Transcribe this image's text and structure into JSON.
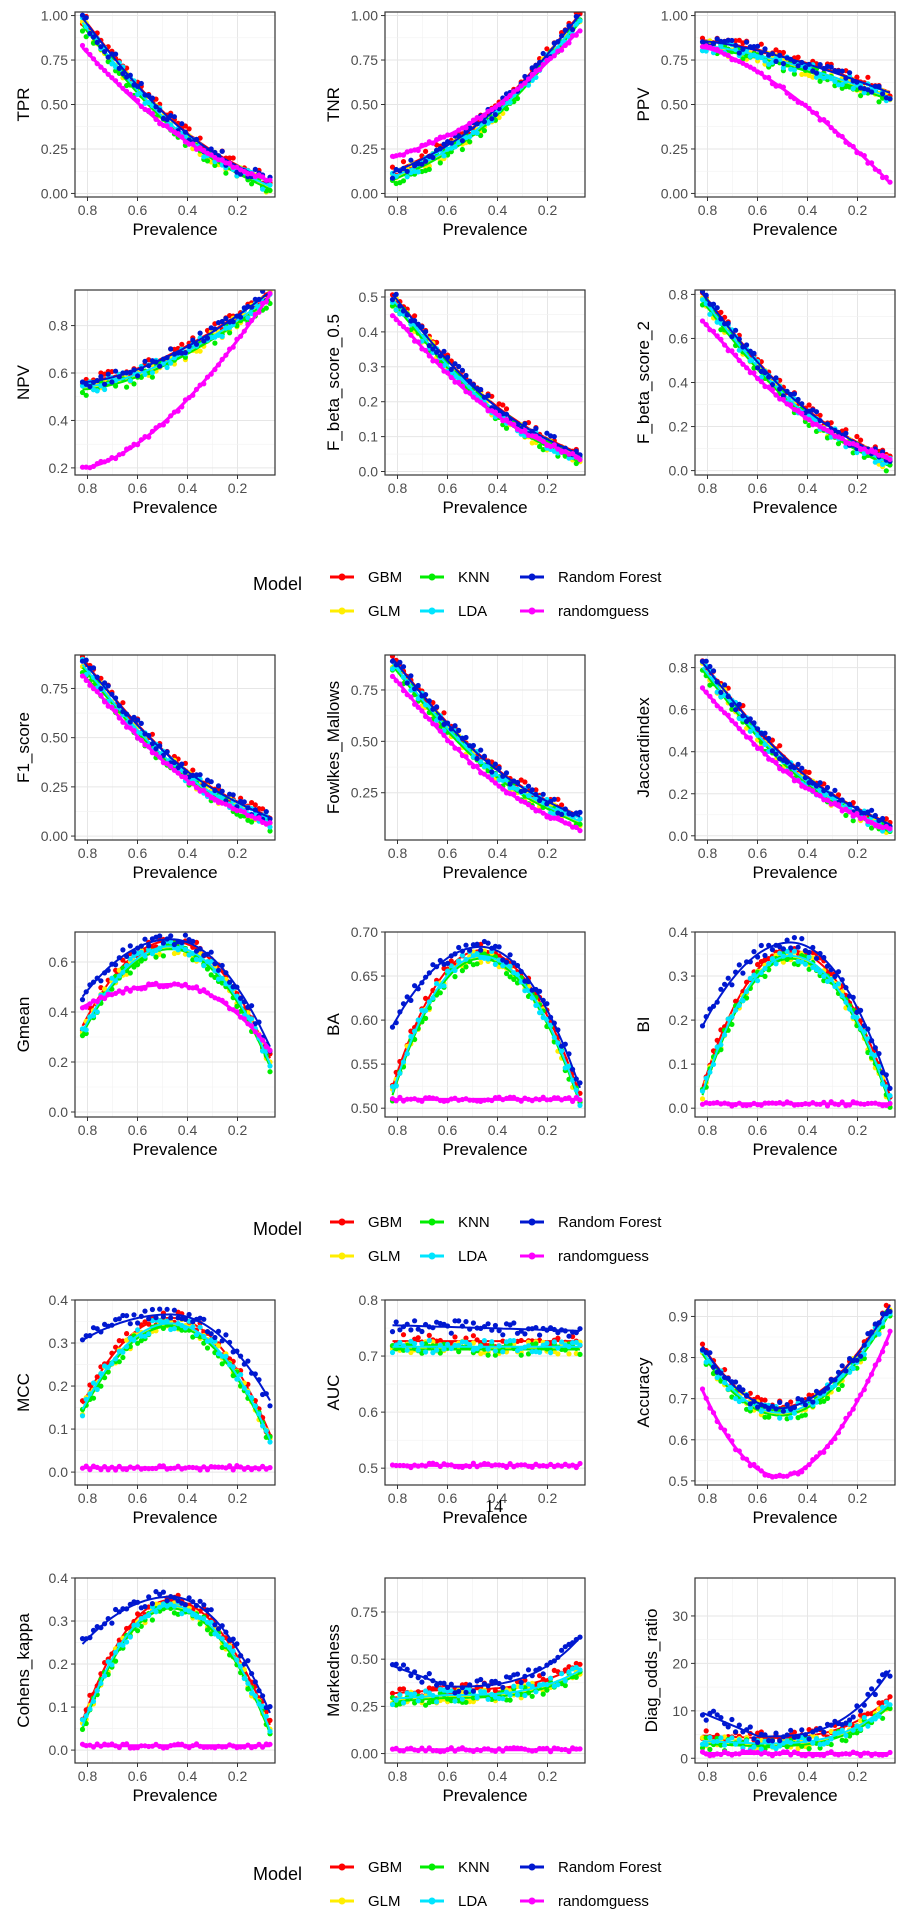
{
  "page_number": "14",
  "colors": {
    "GBM": "#FF0000",
    "GLM": "#FFEE00",
    "KNN": "#00EE00",
    "LDA": "#00E5FF",
    "Random Forest": "#0018D0",
    "randomguess": "#FF00FF"
  },
  "legends": [
    {
      "title": "Model",
      "row1": [
        "GBM",
        "KNN",
        "Random Forest"
      ],
      "row2": [
        "GLM",
        "LDA",
        "randomguess"
      ]
    },
    {
      "title": "Model",
      "row1": [
        "GBM",
        "KNN",
        "Random Forest"
      ],
      "row2": [
        "GLM",
        "LDA",
        "randomguess"
      ]
    },
    {
      "title": "Model",
      "row1": [
        "GBM",
        "KNN",
        "Random Forest"
      ],
      "row2": [
        "GLM",
        "LDA",
        "randomguess"
      ]
    }
  ],
  "chart_data": [
    {
      "type": "scatter",
      "title": "",
      "xlabel": "Prevalence",
      "ylabel": "TPR",
      "xlim": [
        0.85,
        0.05
      ],
      "ylim": [
        -0.02,
        1.02
      ],
      "xticks": [
        "0.8",
        "0.6",
        "0.4",
        "0.2"
      ],
      "yticks": [
        "0.00",
        "0.25",
        "0.50",
        "0.75",
        "1.00"
      ],
      "grid": true,
      "shape": "decline",
      "models": {
        "main": [
          0.97,
          0.05
        ],
        "rg": [
          0.82,
          0.07
        ]
      }
    },
    {
      "type": "scatter",
      "title": "",
      "xlabel": "Prevalence",
      "ylabel": "TNR",
      "xlim": [
        0.85,
        0.05
      ],
      "ylim": [
        -0.02,
        1.02
      ],
      "xticks": [
        "0.8",
        "0.6",
        "0.4",
        "0.2"
      ],
      "yticks": [
        "0.00",
        "0.25",
        "0.50",
        "0.75",
        "1.00"
      ],
      "grid": true,
      "shape": "rise",
      "models": {
        "main": [
          0.1,
          0.99
        ],
        "rg": [
          0.2,
          0.92
        ]
      }
    },
    {
      "type": "scatter",
      "title": "",
      "xlabel": "Prevalence",
      "ylabel": "PPV",
      "xlim": [
        0.85,
        0.05
      ],
      "ylim": [
        -0.02,
        1.02
      ],
      "xticks": [
        "0.8",
        "0.6",
        "0.4",
        "0.2"
      ],
      "yticks": [
        "0.00",
        "0.25",
        "0.50",
        "0.75",
        "1.00"
      ],
      "grid": true,
      "shape": "ppv",
      "models": {
        "main": [
          0.84,
          0.55
        ],
        "rg": [
          0.82,
          0.06
        ]
      }
    },
    {
      "type": "scatter",
      "title": "",
      "xlabel": "Prevalence",
      "ylabel": "NPV",
      "xlim": [
        0.85,
        0.05
      ],
      "ylim": [
        0.17,
        0.95
      ],
      "xticks": [
        "0.8",
        "0.6",
        "0.4",
        "0.2"
      ],
      "yticks": [
        "0.2",
        "0.4",
        "0.6",
        "0.8"
      ],
      "grid": true,
      "shape": "npv",
      "models": {
        "main": [
          0.55,
          0.93
        ],
        "rg": [
          0.2,
          0.93
        ]
      }
    },
    {
      "type": "scatter",
      "title": "",
      "xlabel": "Prevalence",
      "ylabel": "F_beta_score_0.5",
      "xlim": [
        0.85,
        0.05
      ],
      "ylim": [
        -0.01,
        0.52
      ],
      "xticks": [
        "0.8",
        "0.6",
        "0.4",
        "0.2"
      ],
      "yticks": [
        "0.0",
        "0.1",
        "0.2",
        "0.3",
        "0.4",
        "0.5"
      ],
      "grid": true,
      "shape": "decline",
      "models": {
        "main": [
          0.5,
          0.04
        ],
        "rg": [
          0.45,
          0.04
        ]
      }
    },
    {
      "type": "scatter",
      "title": "",
      "xlabel": "Prevalence",
      "ylabel": "F_beta_score_2",
      "xlim": [
        0.85,
        0.05
      ],
      "ylim": [
        -0.02,
        0.82
      ],
      "xticks": [
        "0.8",
        "0.6",
        "0.4",
        "0.2"
      ],
      "yticks": [
        "0.0",
        "0.2",
        "0.4",
        "0.6",
        "0.8"
      ],
      "grid": true,
      "shape": "decline",
      "models": {
        "main": [
          0.79,
          0.04
        ],
        "rg": [
          0.68,
          0.05
        ]
      }
    },
    {
      "type": "scatter",
      "title": "",
      "xlabel": "Prevalence",
      "ylabel": "F1_score",
      "xlim": [
        0.85,
        0.05
      ],
      "ylim": [
        -0.02,
        0.92
      ],
      "xticks": [
        "0.8",
        "0.6",
        "0.4",
        "0.2"
      ],
      "yticks": [
        "0.00",
        "0.25",
        "0.50",
        "0.75"
      ],
      "grid": true,
      "shape": "decline",
      "models": {
        "main": [
          0.88,
          0.08
        ],
        "rg": [
          0.82,
          0.06
        ]
      }
    },
    {
      "type": "scatter",
      "title": "",
      "xlabel": "Prevalence",
      "ylabel": "Fowlkes_Mallows",
      "xlim": [
        0.85,
        0.05
      ],
      "ylim": [
        0.02,
        0.92
      ],
      "xticks": [
        "0.8",
        "0.6",
        "0.4",
        "0.2"
      ],
      "yticks": [
        "0.25",
        "0.50",
        "0.75"
      ],
      "grid": true,
      "shape": "decline",
      "models": {
        "main": [
          0.89,
          0.12
        ],
        "rg": [
          0.82,
          0.07
        ]
      }
    },
    {
      "type": "scatter",
      "title": "",
      "xlabel": "Prevalence",
      "ylabel": "Jaccardindex",
      "xlim": [
        0.85,
        0.05
      ],
      "ylim": [
        -0.02,
        0.86
      ],
      "xticks": [
        "0.8",
        "0.6",
        "0.4",
        "0.2"
      ],
      "yticks": [
        "0.0",
        "0.2",
        "0.4",
        "0.6",
        "0.8"
      ],
      "grid": true,
      "shape": "decline",
      "models": {
        "main": [
          0.81,
          0.04
        ],
        "rg": [
          0.7,
          0.03
        ]
      }
    },
    {
      "type": "scatter",
      "title": "",
      "xlabel": "Prevalence",
      "ylabel": "Gmean",
      "xlim": [
        0.85,
        0.05
      ],
      "ylim": [
        -0.02,
        0.72
      ],
      "xticks": [
        "0.8",
        "0.6",
        "0.4",
        "0.2"
      ],
      "yticks": [
        "0.0",
        "0.2",
        "0.4",
        "0.6"
      ],
      "grid": true,
      "shape": "arch",
      "models": {
        "main": [
          0.33,
          0.67,
          0.2
        ],
        "rg": [
          0.42,
          0.51,
          0.25
        ],
        "rf": [
          0.45,
          0.68,
          0.25
        ]
      }
    },
    {
      "type": "scatter",
      "title": "",
      "xlabel": "Prevalence",
      "ylabel": "BA",
      "xlim": [
        0.85,
        0.05
      ],
      "ylim": [
        0.49,
        0.7
      ],
      "xticks": [
        "0.8",
        "0.6",
        "0.4",
        "0.2"
      ],
      "yticks": [
        "0.50",
        "0.55",
        "0.60",
        "0.65",
        "0.70"
      ],
      "grid": true,
      "shape": "arch",
      "models": {
        "main": [
          0.52,
          0.675,
          0.51
        ],
        "rg": [
          0.51,
          0.51,
          0.51
        ],
        "rf": [
          0.59,
          0.68,
          0.52
        ]
      }
    },
    {
      "type": "scatter",
      "title": "",
      "xlabel": "Prevalence",
      "ylabel": "BI",
      "xlim": [
        0.85,
        0.05
      ],
      "ylim": [
        -0.02,
        0.4
      ],
      "xticks": [
        "0.8",
        "0.6",
        "0.4",
        "0.2"
      ],
      "yticks": [
        "0.0",
        "0.1",
        "0.2",
        "0.3",
        "0.4"
      ],
      "grid": true,
      "shape": "arch",
      "models": {
        "main": [
          0.04,
          0.35,
          0.02
        ],
        "rg": [
          0.01,
          0.01,
          0.01
        ],
        "rf": [
          0.18,
          0.37,
          0.04
        ]
      }
    },
    {
      "type": "scatter",
      "title": "",
      "xlabel": "Prevalence",
      "ylabel": "MCC",
      "xlim": [
        0.85,
        0.05
      ],
      "ylim": [
        -0.03,
        0.4
      ],
      "xticks": [
        "0.8",
        "0.6",
        "0.4",
        "0.2"
      ],
      "yticks": [
        "0.0",
        "0.1",
        "0.2",
        "0.3",
        "0.4"
      ],
      "grid": true,
      "shape": "arch",
      "models": {
        "main": [
          0.15,
          0.35,
          0.08
        ],
        "rg": [
          0.01,
          0.01,
          0.01
        ],
        "rf": [
          0.3,
          0.36,
          0.16
        ]
      }
    },
    {
      "type": "scatter",
      "title": "",
      "xlabel": "Prevalence",
      "ylabel": "AUC",
      "xlim": [
        0.85,
        0.05
      ],
      "ylim": [
        0.47,
        0.8
      ],
      "xticks": [
        "0.8",
        "0.6",
        "0.4",
        "0.2"
      ],
      "yticks": [
        "0.5",
        "0.6",
        "0.7",
        "0.8"
      ],
      "grid": true,
      "shape": "flat",
      "models": {
        "main": [
          0.72,
          0.72
        ],
        "rg": [
          0.505,
          0.505
        ],
        "rf": [
          0.75,
          0.74
        ]
      }
    },
    {
      "type": "scatter",
      "title": "",
      "xlabel": "Prevalence",
      "ylabel": "Accuracy",
      "xlim": [
        0.85,
        0.05
      ],
      "ylim": [
        0.49,
        0.94
      ],
      "xticks": [
        "0.8",
        "0.6",
        "0.4",
        "0.2"
      ],
      "yticks": [
        "0.5",
        "0.6",
        "0.7",
        "0.8",
        "0.9"
      ],
      "grid": true,
      "shape": "valley",
      "models": {
        "main": [
          0.82,
          0.67,
          0.92
        ],
        "rg": [
          0.72,
          0.51,
          0.86
        ]
      }
    },
    {
      "type": "scatter",
      "title": "",
      "xlabel": "Prevalence",
      "ylabel": "Cohens_kappa",
      "xlim": [
        0.85,
        0.05
      ],
      "ylim": [
        -0.03,
        0.4
      ],
      "xticks": [
        "0.8",
        "0.6",
        "0.4",
        "0.2"
      ],
      "yticks": [
        "0.0",
        "0.1",
        "0.2",
        "0.3",
        "0.4"
      ],
      "grid": true,
      "shape": "arch",
      "models": {
        "main": [
          0.06,
          0.34,
          0.05
        ],
        "rg": [
          0.01,
          0.01,
          0.01
        ],
        "rf": [
          0.24,
          0.35,
          0.08
        ]
      }
    },
    {
      "type": "scatter",
      "title": "",
      "xlabel": "Prevalence",
      "ylabel": "Markedness",
      "xlim": [
        0.85,
        0.05
      ],
      "ylim": [
        -0.05,
        0.93
      ],
      "xticks": [
        "0.8",
        "0.6",
        "0.4",
        "0.2"
      ],
      "yticks": [
        "0.00",
        "0.25",
        "0.50",
        "0.75"
      ],
      "grid": true,
      "shape": "flatup",
      "models": {
        "main": [
          0.3,
          0.32,
          0.45
        ],
        "rg": [
          0.02,
          0.02,
          0.02
        ],
        "rf": [
          0.45,
          0.34,
          0.6
        ]
      }
    },
    {
      "type": "scatter",
      "title": "",
      "xlabel": "Prevalence",
      "ylabel": "Diag_odds_ratio",
      "xlim": [
        0.85,
        0.05
      ],
      "ylim": [
        -1,
        38
      ],
      "xticks": [
        "0.8",
        "0.6",
        "0.4",
        "0.2"
      ],
      "yticks": [
        "0",
        "10",
        "20",
        "30"
      ],
      "grid": true,
      "shape": "flatup",
      "models": {
        "main": [
          4,
          3.5,
          12
        ],
        "rg": [
          1,
          1,
          1
        ],
        "rf": [
          9,
          4,
          18
        ]
      }
    }
  ]
}
